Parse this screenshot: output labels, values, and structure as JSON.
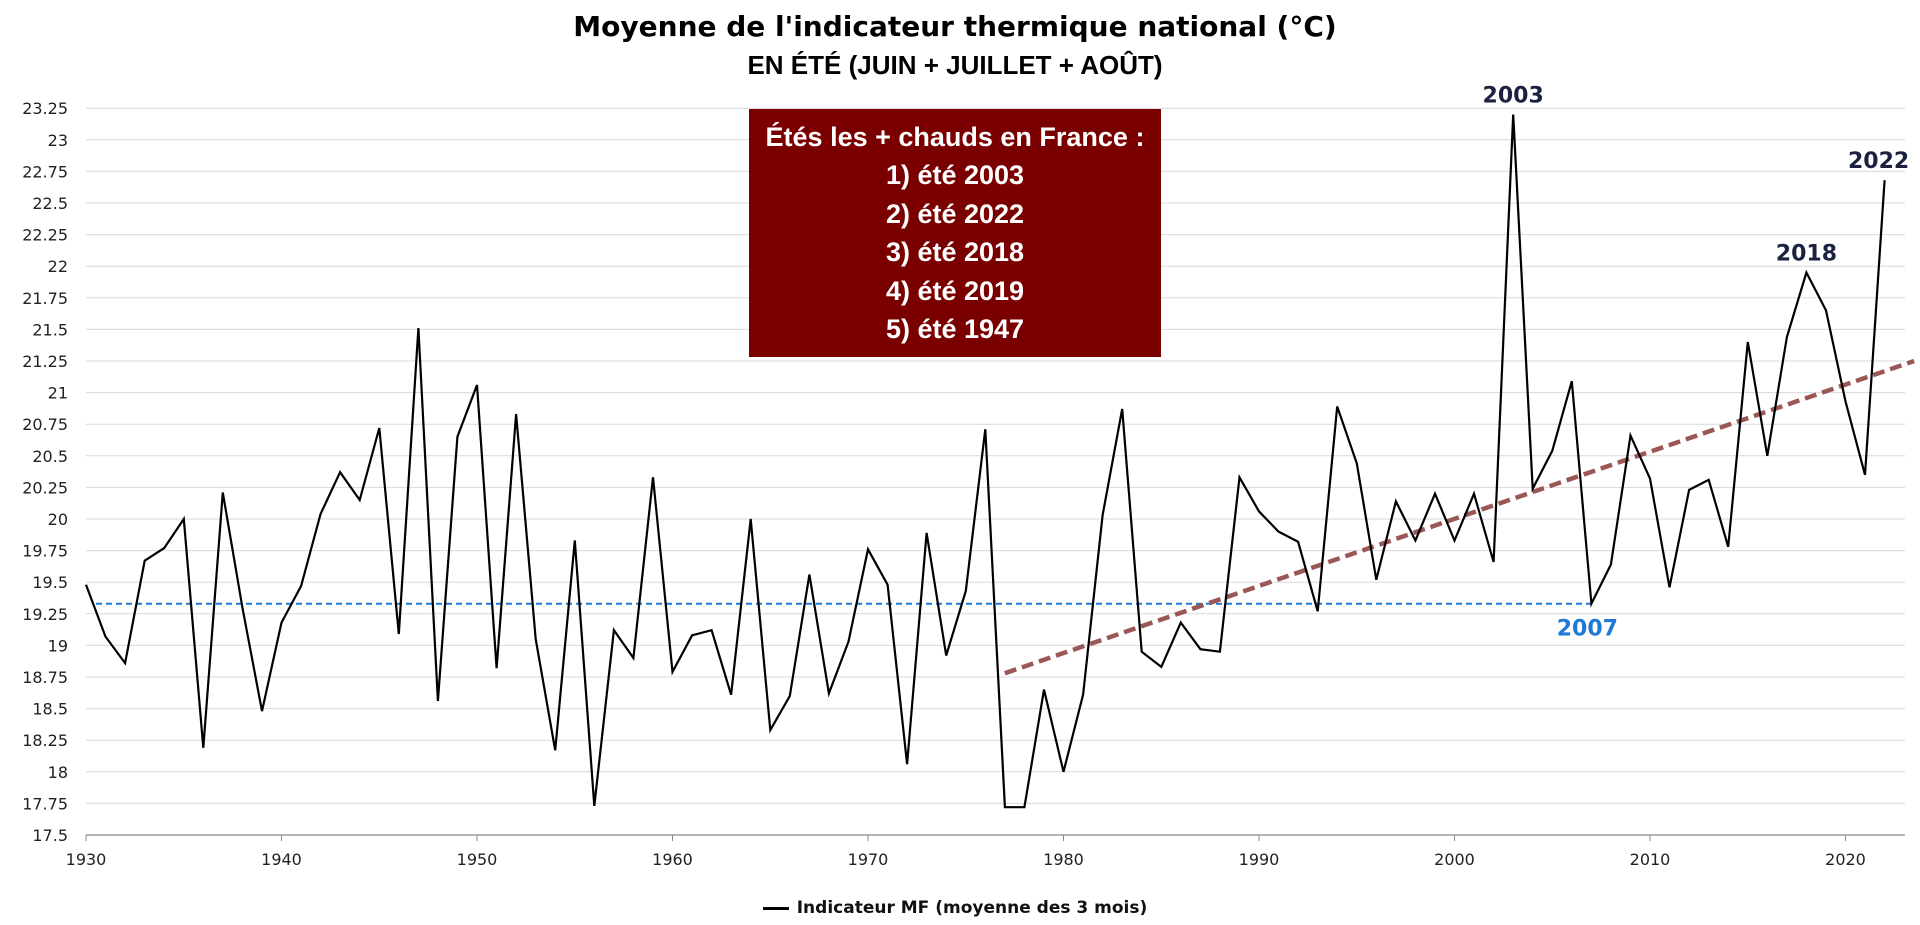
{
  "chart_data": {
    "type": "line",
    "title": "Moyenne de l'indicateur thermique national (°C)",
    "subtitle": "EN ÉTÉ (JUIN + JUILLET + AOÛT)",
    "xlabel": "",
    "ylabel": "",
    "xlim": [
      1930,
      2023
    ],
    "ylim": [
      17.5,
      23.4
    ],
    "x_ticks": [
      1930,
      1940,
      1950,
      1960,
      1970,
      1980,
      1990,
      2000,
      2010,
      2020
    ],
    "y_ticks": [
      17.5,
      17.75,
      18,
      18.25,
      18.5,
      18.75,
      19,
      19.25,
      19.5,
      19.75,
      20,
      20.25,
      20.5,
      20.75,
      21,
      21.25,
      21.5,
      21.75,
      22,
      22.25,
      22.5,
      22.75,
      23,
      23.25
    ],
    "grid": true,
    "legend_position": "bottom",
    "series": [
      {
        "name": "Indicateur MF (moyenne des 3 mois)",
        "color": "#000000",
        "x": [
          1930,
          1931,
          1932,
          1933,
          1934,
          1935,
          1936,
          1937,
          1938,
          1939,
          1940,
          1941,
          1942,
          1943,
          1944,
          1945,
          1946,
          1947,
          1948,
          1949,
          1950,
          1951,
          1952,
          1953,
          1954,
          1955,
          1956,
          1957,
          1958,
          1959,
          1960,
          1961,
          1962,
          1963,
          1964,
          1965,
          1966,
          1967,
          1968,
          1969,
          1970,
          1971,
          1972,
          1973,
          1974,
          1975,
          1976,
          1977,
          1978,
          1979,
          1980,
          1981,
          1982,
          1983,
          1984,
          1985,
          1986,
          1987,
          1988,
          1989,
          1990,
          1991,
          1992,
          1993,
          1994,
          1995,
          1996,
          1997,
          1998,
          1999,
          2000,
          2001,
          2002,
          2003,
          2004,
          2005,
          2006,
          2007,
          2008,
          2009,
          2010,
          2011,
          2012,
          2013,
          2014,
          2015,
          2016,
          2017,
          2018,
          2019,
          2020,
          2021,
          2022
        ],
        "values": [
          19.48,
          19.07,
          18.86,
          19.67,
          19.77,
          20.0,
          18.19,
          20.21,
          19.3,
          18.48,
          19.18,
          19.47,
          20.04,
          20.37,
          20.15,
          20.72,
          19.09,
          21.51,
          18.56,
          20.65,
          21.06,
          18.82,
          20.83,
          19.05,
          18.17,
          19.83,
          17.73,
          19.12,
          18.9,
          20.33,
          18.79,
          19.08,
          19.12,
          18.61,
          20.0,
          18.33,
          18.6,
          19.56,
          18.62,
          19.03,
          19.76,
          19.48,
          18.06,
          19.89,
          18.92,
          19.43,
          20.71,
          17.72,
          17.72,
          18.65,
          18.0,
          18.61,
          20.03,
          20.87,
          18.95,
          18.83,
          19.18,
          18.97,
          18.95,
          20.33,
          20.06,
          19.9,
          19.82,
          19.27,
          20.89,
          20.44,
          19.52,
          20.14,
          19.83,
          20.2,
          19.83,
          20.2,
          19.66,
          23.2,
          20.24,
          20.54,
          21.09,
          19.33,
          19.64,
          20.66,
          20.32,
          19.46,
          20.23,
          20.31,
          19.78,
          21.4,
          20.5,
          21.44,
          21.95,
          21.65,
          20.93,
          20.35,
          22.68
        ]
      }
    ],
    "reference_line": {
      "value": 19.33,
      "x_start": 1930,
      "x_end": 2007,
      "label": "2007",
      "color": "#1f7ad6"
    },
    "trend_line": {
      "x_start": 1977,
      "y_start": 18.78,
      "x_end": 2023,
      "y_end": 21.25,
      "color": "#9b5656"
    },
    "annotations": [
      {
        "label": "2003",
        "x": 2003,
        "y": 23.2,
        "color": "#1b2240"
      },
      {
        "label": "2022",
        "x": 2022,
        "y": 22.68,
        "color": "#1b2240"
      },
      {
        "label": "2018",
        "x": 2018,
        "y": 21.95,
        "color": "#1b2240"
      }
    ]
  },
  "infobox": {
    "lines": [
      "Étés les + chauds en France :",
      "1) été 2003",
      "2) été 2022",
      "3) été 2018",
      "4) été 2019",
      "5) été 1947"
    ],
    "background": "#7a0000"
  },
  "legend": {
    "label": "Indicateur MF (moyenne des 3 mois)"
  }
}
